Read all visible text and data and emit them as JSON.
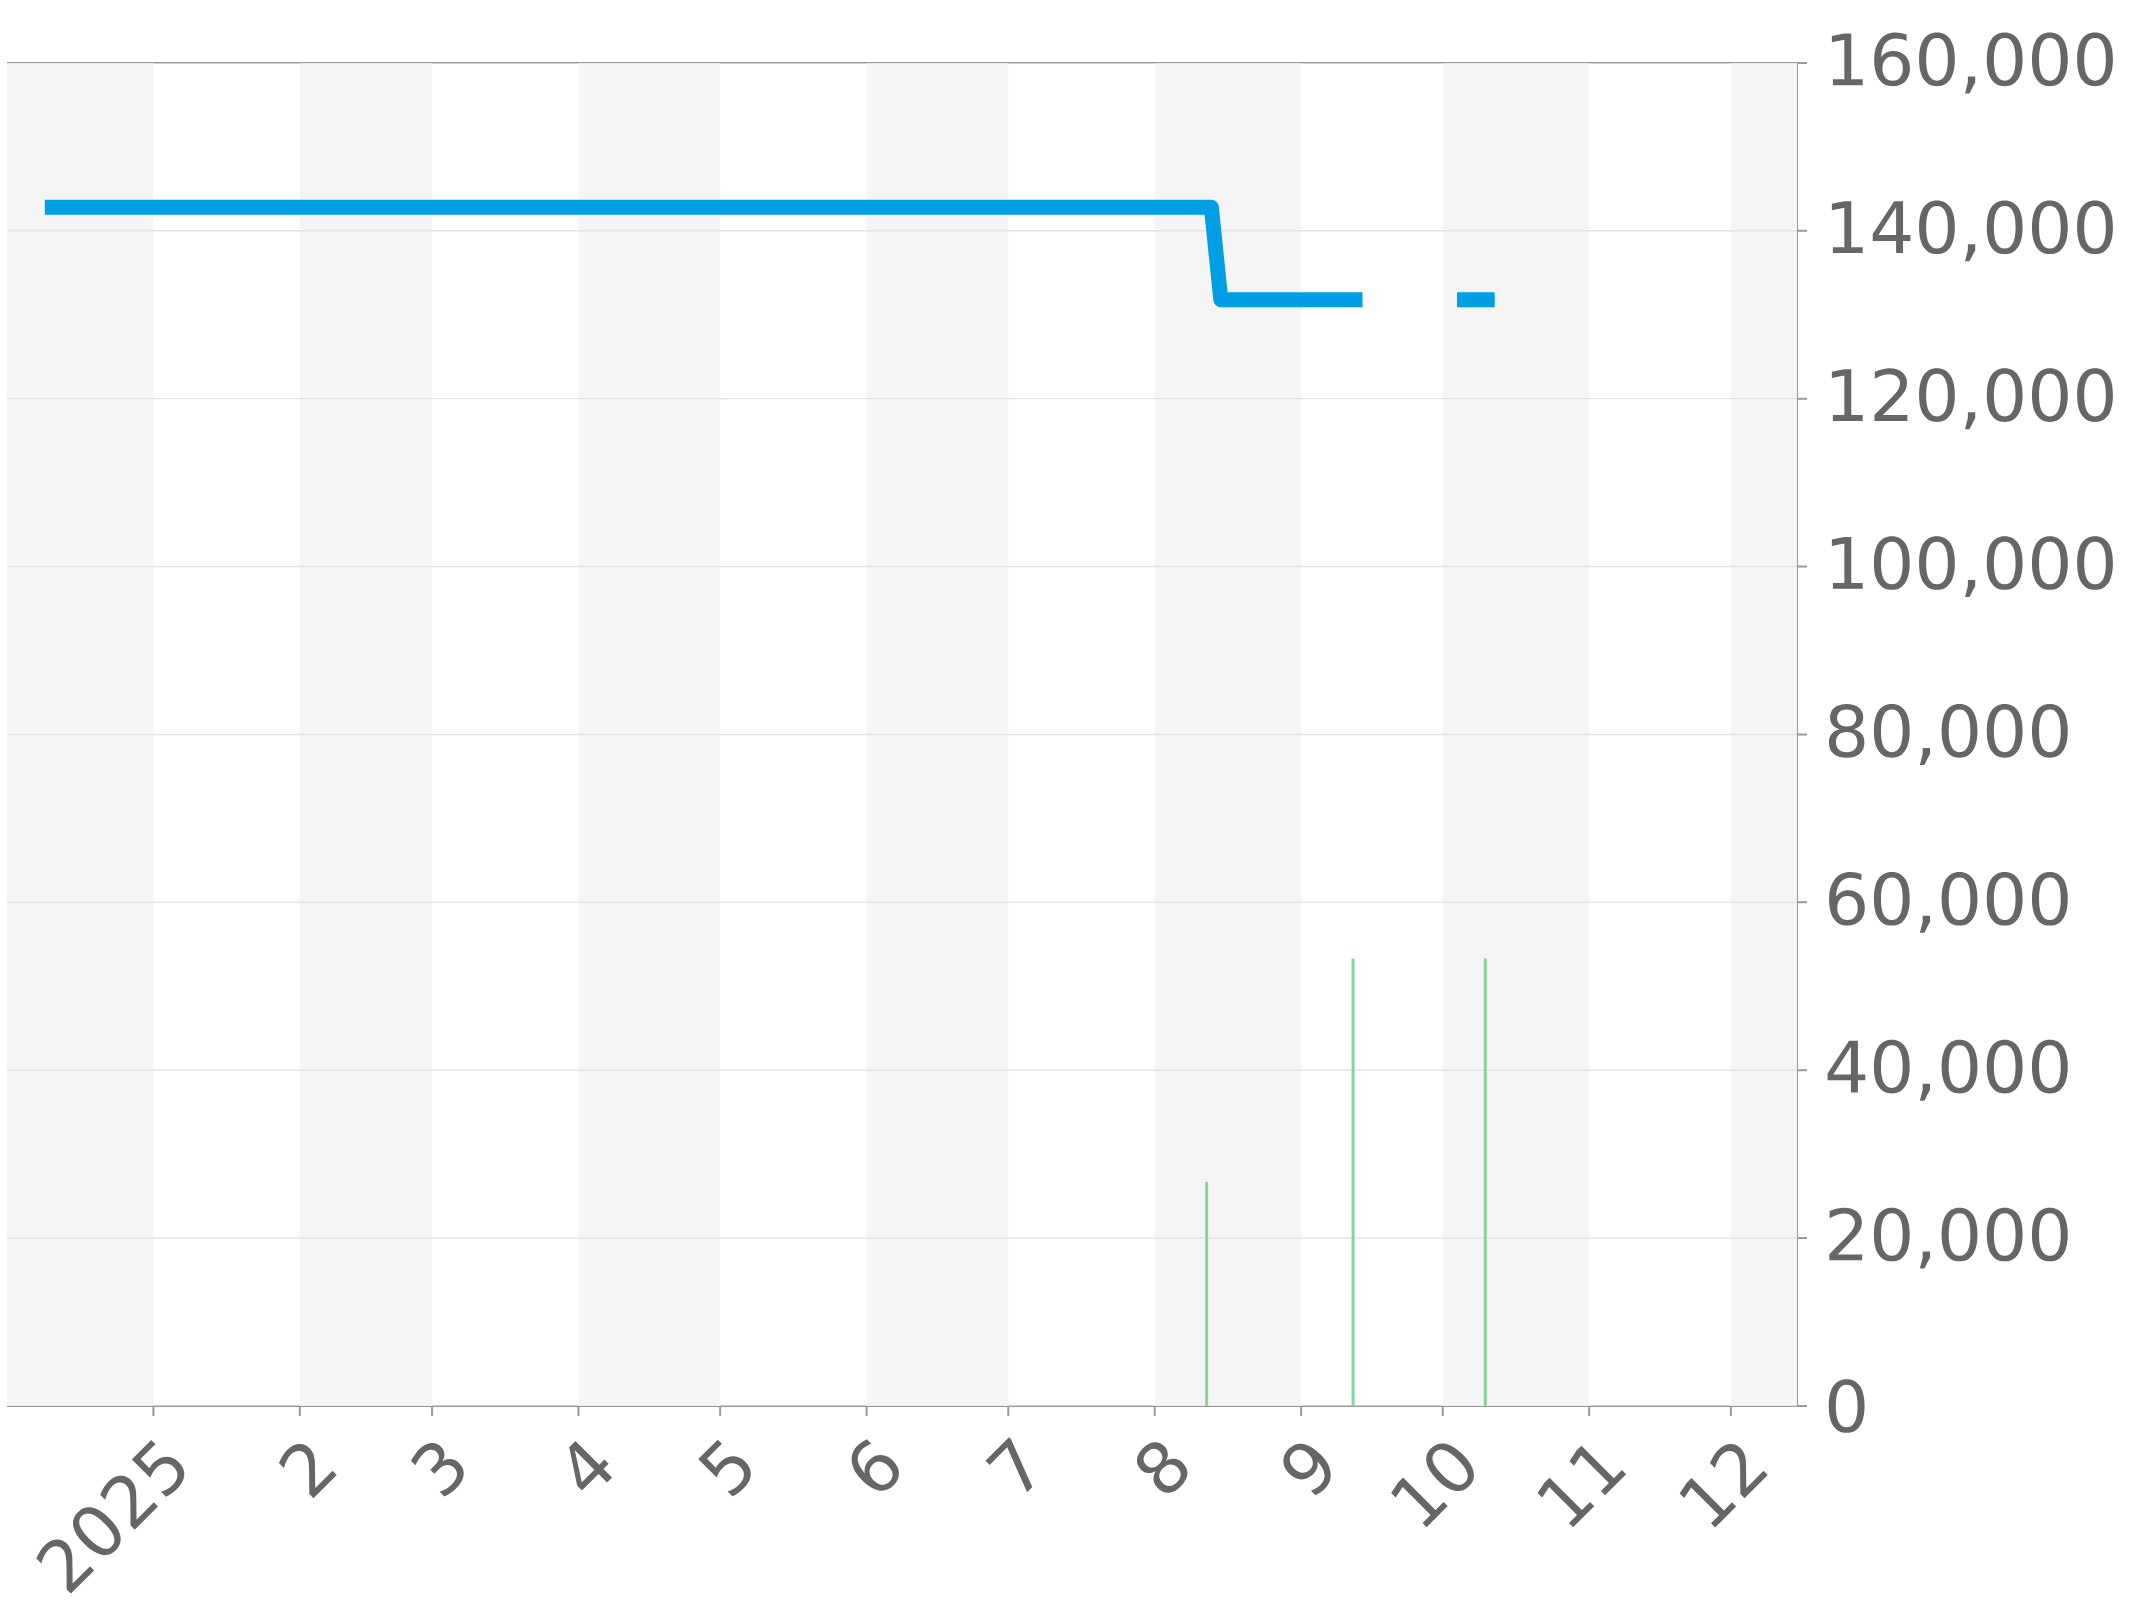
{
  "chart_data": {
    "type": "line",
    "xlim": [
      "2024-12-01",
      "2025-12-15"
    ],
    "ylim": [
      0,
      160000
    ],
    "xticks": [
      {
        "value": "2025-01-01",
        "label": "2025"
      },
      {
        "value": "2025-02-01",
        "label": "2"
      },
      {
        "value": "2025-03-01",
        "label": "3"
      },
      {
        "value": "2025-04-01",
        "label": "4"
      },
      {
        "value": "2025-05-01",
        "label": "5"
      },
      {
        "value": "2025-06-01",
        "label": "6"
      },
      {
        "value": "2025-07-01",
        "label": "7"
      },
      {
        "value": "2025-08-01",
        "label": "8"
      },
      {
        "value": "2025-09-01",
        "label": "9"
      },
      {
        "value": "2025-10-01",
        "label": "10"
      },
      {
        "value": "2025-11-01",
        "label": "11"
      },
      {
        "value": "2025-12-01",
        "label": "12"
      }
    ],
    "yticks": [
      0,
      {
        "value": 20000,
        "label": "20,000"
      },
      {
        "value": 40000,
        "label": "40,000"
      },
      {
        "value": 60000,
        "label": "60,000"
      },
      {
        "value": 80000,
        "label": "80,000"
      },
      {
        "value": 100000,
        "label": "100,000"
      },
      {
        "value": 120000,
        "label": "120,000"
      },
      {
        "value": 140000,
        "label": "140,000"
      },
      {
        "value": 160000,
        "label": "160,000"
      }
    ],
    "grid": "y",
    "marker": "none",
    "bands": [
      {
        "axis": "x",
        "from": "2024-12-01",
        "to": "2025-01-01",
        "color": "#f5f5f5"
      },
      {
        "axis": "x",
        "from": "2025-02-01",
        "to": "2025-03-01",
        "color": "#f5f5f5"
      },
      {
        "axis": "x",
        "from": "2025-04-01",
        "to": "2025-05-01",
        "color": "#f5f5f5"
      },
      {
        "axis": "x",
        "from": "2025-06-01",
        "to": "2025-07-01",
        "color": "#f5f5f5"
      },
      {
        "axis": "x",
        "from": "2025-08-01",
        "to": "2025-09-01",
        "color": "#f5f5f5"
      },
      {
        "axis": "x",
        "from": "2025-10-01",
        "to": "2025-11-01",
        "color": "#f5f5f5"
      },
      {
        "axis": "x",
        "from": "2025-12-01",
        "to": "2025-12-15",
        "color": "#f5f5f5"
      }
    ],
    "series": [
      {
        "type": "bar",
        "color": "#88d498",
        "x": [
          "2025-08-12",
          "2025-09-12",
          "2025-10-10"
        ],
        "values": [
          26700,
          53300,
          53300
        ]
      },
      {
        "color": "#009fe3",
        "x": [
          "2024-12-09",
          "2025-08-13",
          "2025-08-15",
          "2025-09-14",
          "2025-09-24",
          "2025-10-04",
          "2025-10-12"
        ],
        "values": [
          142800,
          142800,
          131800,
          131800,
          null,
          131800,
          131800
        ]
      }
    ]
  }
}
